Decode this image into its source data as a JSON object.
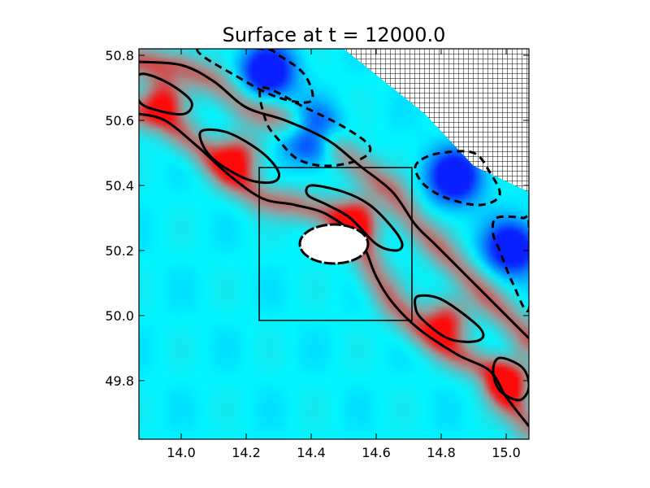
{
  "chart_data": {
    "type": "heatmap",
    "title": "Surface at t =  12000.0",
    "xlabel": "",
    "ylabel": "",
    "xlim": [
      13.87,
      15.07
    ],
    "ylim": [
      49.62,
      50.82
    ],
    "x_ticks": [
      "14.0",
      "14.2",
      "14.4",
      "14.6",
      "14.8",
      "15.0"
    ],
    "x_tick_values": [
      14.0,
      14.2,
      14.4,
      14.6,
      14.8,
      15.0
    ],
    "y_ticks": [
      "49.8",
      "50.0",
      "50.2",
      "50.4",
      "50.6",
      "50.8"
    ],
    "y_tick_values": [
      49.8,
      50.0,
      50.2,
      50.4,
      50.6,
      50.8
    ],
    "grid": false,
    "colormap": {
      "negative": "#0a1fff",
      "near_zero": "#00f5ff",
      "mid": "#9a9a9a",
      "positive": "#ff0a0a"
    },
    "island": {
      "center": [
        14.47,
        50.22
      ],
      "rx": 0.105,
      "ry": 0.06,
      "color": "#ffffff"
    },
    "zoom_box": {
      "x": [
        14.24,
        14.71
      ],
      "y": [
        49.985,
        50.455
      ]
    },
    "land_region_pattern": "hatched-grid",
    "land_region_vertices": [
      [
        14.5,
        50.82
      ],
      [
        15.07,
        50.82
      ],
      [
        15.07,
        50.38
      ],
      [
        14.9,
        50.46
      ],
      [
        14.75,
        50.62
      ],
      [
        14.6,
        50.74
      ]
    ],
    "positive_contours": [
      [
        [
          13.87,
          50.74
        ],
        [
          13.95,
          50.72
        ],
        [
          14.03,
          50.66
        ],
        [
          14.01,
          50.62
        ],
        [
          13.93,
          50.63
        ],
        [
          13.87,
          50.66
        ]
      ],
      [
        [
          14.07,
          50.57
        ],
        [
          14.15,
          50.56
        ],
        [
          14.25,
          50.5
        ],
        [
          14.3,
          50.44
        ],
        [
          14.28,
          50.41
        ],
        [
          14.2,
          50.42
        ],
        [
          14.1,
          50.48
        ],
        [
          14.06,
          50.54
        ]
      ],
      [
        [
          14.4,
          50.4
        ],
        [
          14.5,
          50.38
        ],
        [
          14.58,
          50.34
        ],
        [
          14.65,
          50.27
        ],
        [
          14.68,
          50.22
        ],
        [
          14.66,
          50.2
        ],
        [
          14.6,
          50.22
        ],
        [
          14.52,
          50.3
        ],
        [
          14.45,
          50.34
        ],
        [
          14.39,
          50.37
        ]
      ],
      [
        [
          14.73,
          50.06
        ],
        [
          14.8,
          50.05
        ],
        [
          14.9,
          49.98
        ],
        [
          14.93,
          49.94
        ],
        [
          14.9,
          49.92
        ],
        [
          14.82,
          49.93
        ],
        [
          14.74,
          49.99
        ],
        [
          14.72,
          50.03
        ]
      ],
      [
        [
          14.98,
          49.87
        ],
        [
          15.05,
          49.84
        ],
        [
          15.07,
          49.78
        ],
        [
          15.04,
          49.74
        ],
        [
          14.98,
          49.77
        ],
        [
          14.96,
          49.83
        ]
      ]
    ],
    "zero_contours": [
      [
        [
          13.87,
          50.78
        ],
        [
          14.0,
          50.77
        ],
        [
          14.1,
          50.72
        ],
        [
          14.2,
          50.64
        ],
        [
          14.32,
          50.6
        ],
        [
          14.45,
          50.54
        ],
        [
          14.55,
          50.46
        ],
        [
          14.65,
          50.38
        ],
        [
          14.72,
          50.28
        ],
        [
          14.78,
          50.22
        ],
        [
          14.88,
          50.12
        ],
        [
          14.96,
          50.04
        ],
        [
          15.07,
          49.93
        ]
      ],
      [
        [
          13.87,
          50.62
        ],
        [
          13.95,
          50.6
        ],
        [
          14.05,
          50.52
        ],
        [
          14.15,
          50.43
        ],
        [
          14.25,
          50.36
        ],
        [
          14.35,
          50.34
        ],
        [
          14.45,
          50.31
        ],
        [
          14.55,
          50.23
        ],
        [
          14.6,
          50.12
        ],
        [
          14.65,
          50.04
        ],
        [
          14.73,
          49.96
        ],
        [
          14.85,
          49.88
        ],
        [
          14.95,
          49.83
        ],
        [
          15.0,
          49.75
        ],
        [
          15.07,
          49.66
        ]
      ]
    ],
    "negative_contours": [
      [
        [
          14.05,
          50.82
        ],
        [
          14.18,
          50.73
        ],
        [
          14.3,
          50.67
        ],
        [
          14.4,
          50.66
        ],
        [
          14.38,
          50.74
        ],
        [
          14.3,
          50.8
        ],
        [
          14.25,
          50.82
        ]
      ],
      [
        [
          14.25,
          50.7
        ],
        [
          14.38,
          50.64
        ],
        [
          14.5,
          50.58
        ],
        [
          14.58,
          50.52
        ],
        [
          14.55,
          50.48
        ],
        [
          14.45,
          50.46
        ],
        [
          14.36,
          50.48
        ],
        [
          14.3,
          50.54
        ],
        [
          14.26,
          50.6
        ]
      ],
      [
        [
          14.74,
          50.48
        ],
        [
          14.8,
          50.5
        ],
        [
          14.9,
          50.5
        ],
        [
          14.95,
          50.44
        ],
        [
          14.98,
          50.37
        ],
        [
          14.92,
          50.34
        ],
        [
          14.82,
          50.36
        ],
        [
          14.75,
          50.4
        ],
        [
          14.72,
          50.45
        ]
      ],
      [
        [
          14.97,
          50.3
        ],
        [
          15.05,
          50.3
        ],
        [
          15.07,
          50.28
        ],
        [
          15.07,
          50.02
        ],
        [
          15.02,
          50.1
        ],
        [
          14.98,
          50.2
        ],
        [
          14.96,
          50.25
        ]
      ]
    ]
  }
}
